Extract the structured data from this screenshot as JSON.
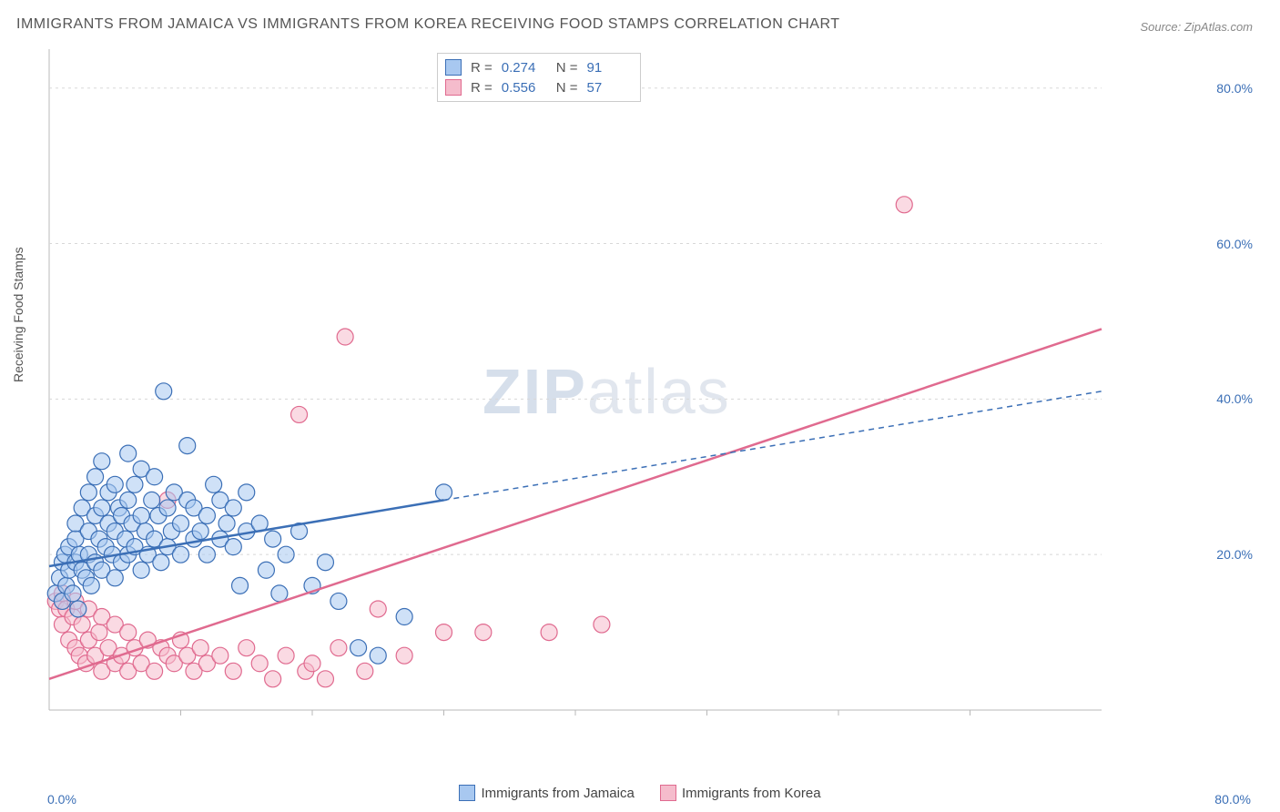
{
  "title": "IMMIGRANTS FROM JAMAICA VS IMMIGRANTS FROM KOREA RECEIVING FOOD STAMPS CORRELATION CHART",
  "source_label": "Source: ZipAtlas.com",
  "y_axis_label": "Receiving Food Stamps",
  "watermark_bold": "ZIP",
  "watermark_rest": "atlas",
  "chart": {
    "type": "scatter",
    "xlim": [
      0,
      80
    ],
    "ylim": [
      0,
      85
    ],
    "x_tick_left": "0.0%",
    "x_tick_right": "80.0%",
    "x_minor_ticks": [
      10,
      20,
      30,
      40,
      50,
      60,
      70
    ],
    "y_ticks": [
      {
        "v": 20,
        "label": "20.0%"
      },
      {
        "v": 40,
        "label": "40.0%"
      },
      {
        "v": 60,
        "label": "60.0%"
      },
      {
        "v": 80,
        "label": "80.0%"
      }
    ],
    "background_color": "#ffffff",
    "grid_color": "#d8d8d8",
    "plot_border_color": "#b8b8b8",
    "marker_radius": 9,
    "marker_stroke_width": 1.2,
    "trendline_width": 2.5,
    "series": {
      "jamaica": {
        "label": "Immigrants from Jamaica",
        "fill": "#a8c8f0",
        "stroke": "#3b6fb6",
        "fill_opacity": 0.55,
        "R": "0.274",
        "N": "91",
        "trendline": {
          "x1": 0,
          "y1": 18.5,
          "x2": 30,
          "y2": 27,
          "x2_ext": 80,
          "y2_ext": 41,
          "dash": "6,5"
        },
        "points": [
          [
            0.5,
            15
          ],
          [
            0.8,
            17
          ],
          [
            1,
            14
          ],
          [
            1,
            19
          ],
          [
            1.2,
            20
          ],
          [
            1.3,
            16
          ],
          [
            1.5,
            18
          ],
          [
            1.5,
            21
          ],
          [
            1.8,
            15
          ],
          [
            2,
            19
          ],
          [
            2,
            22
          ],
          [
            2,
            24
          ],
          [
            2.2,
            13
          ],
          [
            2.3,
            20
          ],
          [
            2.5,
            18
          ],
          [
            2.5,
            26
          ],
          [
            2.8,
            17
          ],
          [
            3,
            20
          ],
          [
            3,
            23
          ],
          [
            3,
            28
          ],
          [
            3.2,
            16
          ],
          [
            3.5,
            19
          ],
          [
            3.5,
            25
          ],
          [
            3.5,
            30
          ],
          [
            3.8,
            22
          ],
          [
            4,
            18
          ],
          [
            4,
            26
          ],
          [
            4,
            32
          ],
          [
            4.3,
            21
          ],
          [
            4.5,
            24
          ],
          [
            4.5,
            28
          ],
          [
            4.8,
            20
          ],
          [
            5,
            17
          ],
          [
            5,
            23
          ],
          [
            5,
            29
          ],
          [
            5.3,
            26
          ],
          [
            5.5,
            19
          ],
          [
            5.5,
            25
          ],
          [
            5.8,
            22
          ],
          [
            6,
            20
          ],
          [
            6,
            27
          ],
          [
            6,
            33
          ],
          [
            6.3,
            24
          ],
          [
            6.5,
            21
          ],
          [
            6.5,
            29
          ],
          [
            7,
            18
          ],
          [
            7,
            25
          ],
          [
            7,
            31
          ],
          [
            7.3,
            23
          ],
          [
            7.5,
            20
          ],
          [
            7.8,
            27
          ],
          [
            8,
            22
          ],
          [
            8,
            30
          ],
          [
            8.3,
            25
          ],
          [
            8.5,
            19
          ],
          [
            8.7,
            41
          ],
          [
            9,
            21
          ],
          [
            9,
            26
          ],
          [
            9.3,
            23
          ],
          [
            9.5,
            28
          ],
          [
            10,
            24
          ],
          [
            10,
            20
          ],
          [
            10.5,
            27
          ],
          [
            10.5,
            34
          ],
          [
            11,
            22
          ],
          [
            11,
            26
          ],
          [
            11.5,
            23
          ],
          [
            12,
            20
          ],
          [
            12,
            25
          ],
          [
            12.5,
            29
          ],
          [
            13,
            22
          ],
          [
            13,
            27
          ],
          [
            13.5,
            24
          ],
          [
            14,
            21
          ],
          [
            14,
            26
          ],
          [
            14.5,
            16
          ],
          [
            15,
            23
          ],
          [
            15,
            28
          ],
          [
            16,
            24
          ],
          [
            16.5,
            18
          ],
          [
            17,
            22
          ],
          [
            17.5,
            15
          ],
          [
            18,
            20
          ],
          [
            19,
            23
          ],
          [
            20,
            16
          ],
          [
            21,
            19
          ],
          [
            22,
            14
          ],
          [
            23.5,
            8
          ],
          [
            25,
            7
          ],
          [
            27,
            12
          ],
          [
            30,
            28
          ]
        ]
      },
      "korea": {
        "label": "Immigrants from Korea",
        "fill": "#f5bccc",
        "stroke": "#e06a8f",
        "fill_opacity": 0.55,
        "R": "0.556",
        "N": "57",
        "trendline": {
          "x1": 0,
          "y1": 4,
          "x2": 80,
          "y2": 49
        },
        "points": [
          [
            0.5,
            14
          ],
          [
            0.8,
            13
          ],
          [
            1,
            11
          ],
          [
            1,
            15
          ],
          [
            1.3,
            13
          ],
          [
            1.5,
            9
          ],
          [
            1.8,
            12
          ],
          [
            2,
            8
          ],
          [
            2,
            14
          ],
          [
            2.3,
            7
          ],
          [
            2.5,
            11
          ],
          [
            2.8,
            6
          ],
          [
            3,
            9
          ],
          [
            3,
            13
          ],
          [
            3.5,
            7
          ],
          [
            3.8,
            10
          ],
          [
            4,
            5
          ],
          [
            4,
            12
          ],
          [
            4.5,
            8
          ],
          [
            5,
            6
          ],
          [
            5,
            11
          ],
          [
            5.5,
            7
          ],
          [
            6,
            5
          ],
          [
            6,
            10
          ],
          [
            6.5,
            8
          ],
          [
            7,
            6
          ],
          [
            7.5,
            9
          ],
          [
            8,
            5
          ],
          [
            8.5,
            8
          ],
          [
            9,
            7
          ],
          [
            9,
            27
          ],
          [
            9.5,
            6
          ],
          [
            10,
            9
          ],
          [
            10.5,
            7
          ],
          [
            11,
            5
          ],
          [
            11.5,
            8
          ],
          [
            12,
            6
          ],
          [
            13,
            7
          ],
          [
            14,
            5
          ],
          [
            15,
            8
          ],
          [
            16,
            6
          ],
          [
            17,
            4
          ],
          [
            18,
            7
          ],
          [
            19,
            38
          ],
          [
            19.5,
            5
          ],
          [
            20,
            6
          ],
          [
            21,
            4
          ],
          [
            22,
            8
          ],
          [
            22.5,
            48
          ],
          [
            24,
            5
          ],
          [
            25,
            13
          ],
          [
            27,
            7
          ],
          [
            30,
            10
          ],
          [
            33,
            10
          ],
          [
            38,
            10
          ],
          [
            42,
            11
          ],
          [
            65,
            65
          ]
        ]
      }
    }
  },
  "legend_stats": {
    "R_label": "R =",
    "N_label": "N ="
  }
}
